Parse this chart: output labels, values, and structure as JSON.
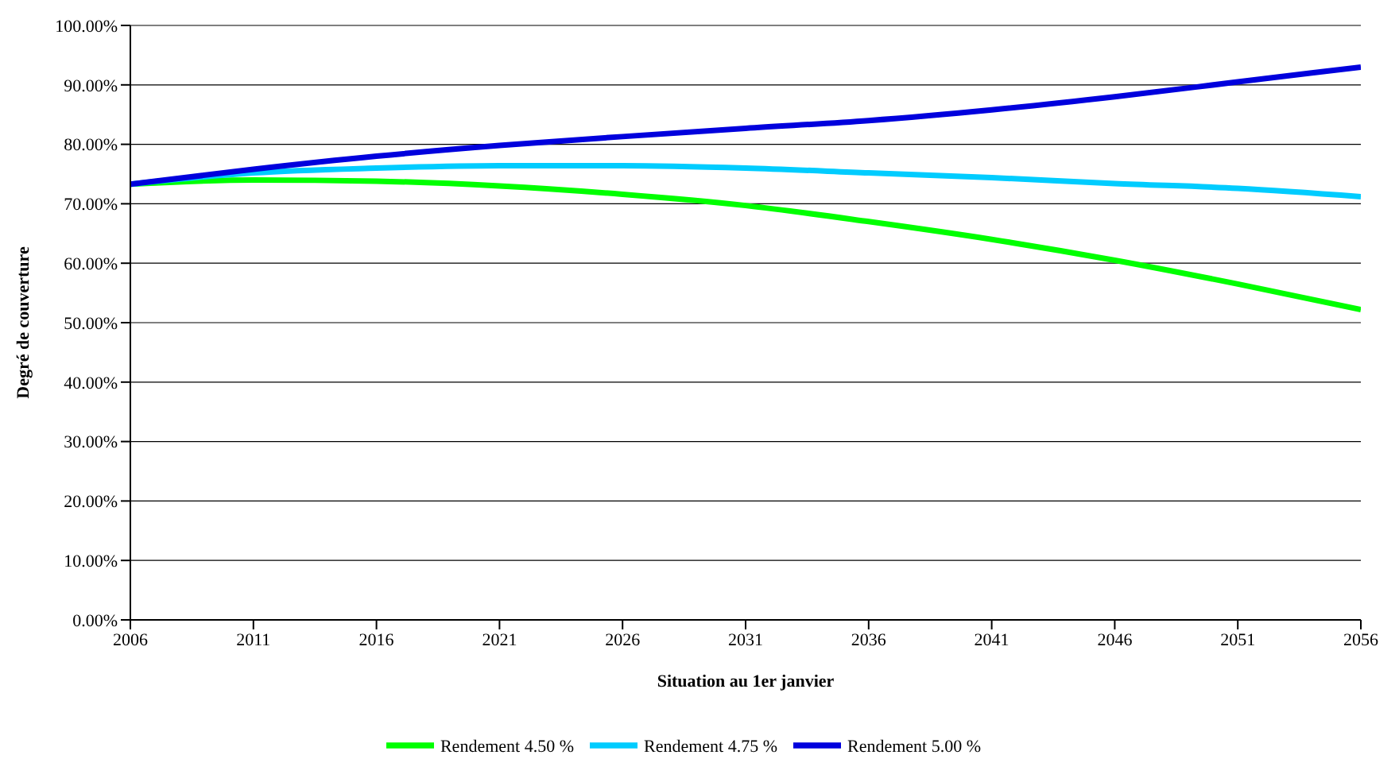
{
  "chart_data": {
    "type": "line",
    "xlabel": "Situation au 1er janvier",
    "ylabel": "Degré de couverture",
    "x": [
      2006,
      2011,
      2016,
      2021,
      2026,
      2031,
      2036,
      2041,
      2046,
      2051,
      2056
    ],
    "series": [
      {
        "name": "Rendement 4.50 %",
        "color": "#00ff00",
        "values": [
          73.3,
          74,
          73.8,
          73,
          71.6,
          69.7,
          67,
          64,
          60.5,
          56.5,
          52.2
        ]
      },
      {
        "name": "Rendement 4.75 %",
        "color": "#00ccff",
        "values": [
          73.3,
          75.2,
          76,
          76.4,
          76.4,
          76,
          75.2,
          74.4,
          73.4,
          72.6,
          71.2
        ]
      },
      {
        "name": "Rendement 5.00 %",
        "color": "#0000dd",
        "values": [
          73.3,
          75.8,
          78,
          79.8,
          81.3,
          82.7,
          84,
          85.8,
          88,
          90.5,
          93
        ]
      }
    ],
    "xlim": [
      2006,
      2056
    ],
    "xticks": [
      2006,
      2011,
      2016,
      2021,
      2026,
      2031,
      2036,
      2041,
      2046,
      2051,
      2056
    ],
    "ylim": [
      0,
      100
    ],
    "yticks": [
      {
        "value": 0,
        "label": "0.00%"
      },
      {
        "value": 10,
        "label": "10.00%"
      },
      {
        "value": 20,
        "label": "20.00%"
      },
      {
        "value": 30,
        "label": "30.00%"
      },
      {
        "value": 40,
        "label": "40.00%"
      },
      {
        "value": 50,
        "label": "50.00%"
      },
      {
        "value": 60,
        "label": "60.00%"
      },
      {
        "value": 70,
        "label": "70.00%"
      },
      {
        "value": 80,
        "label": "80.00%"
      },
      {
        "value": 90,
        "label": "90.00%"
      },
      {
        "value": 100,
        "label": "100.00%"
      }
    ],
    "grid": "y",
    "legend": "bottom",
    "marker": "none",
    "line_style": "solid"
  }
}
